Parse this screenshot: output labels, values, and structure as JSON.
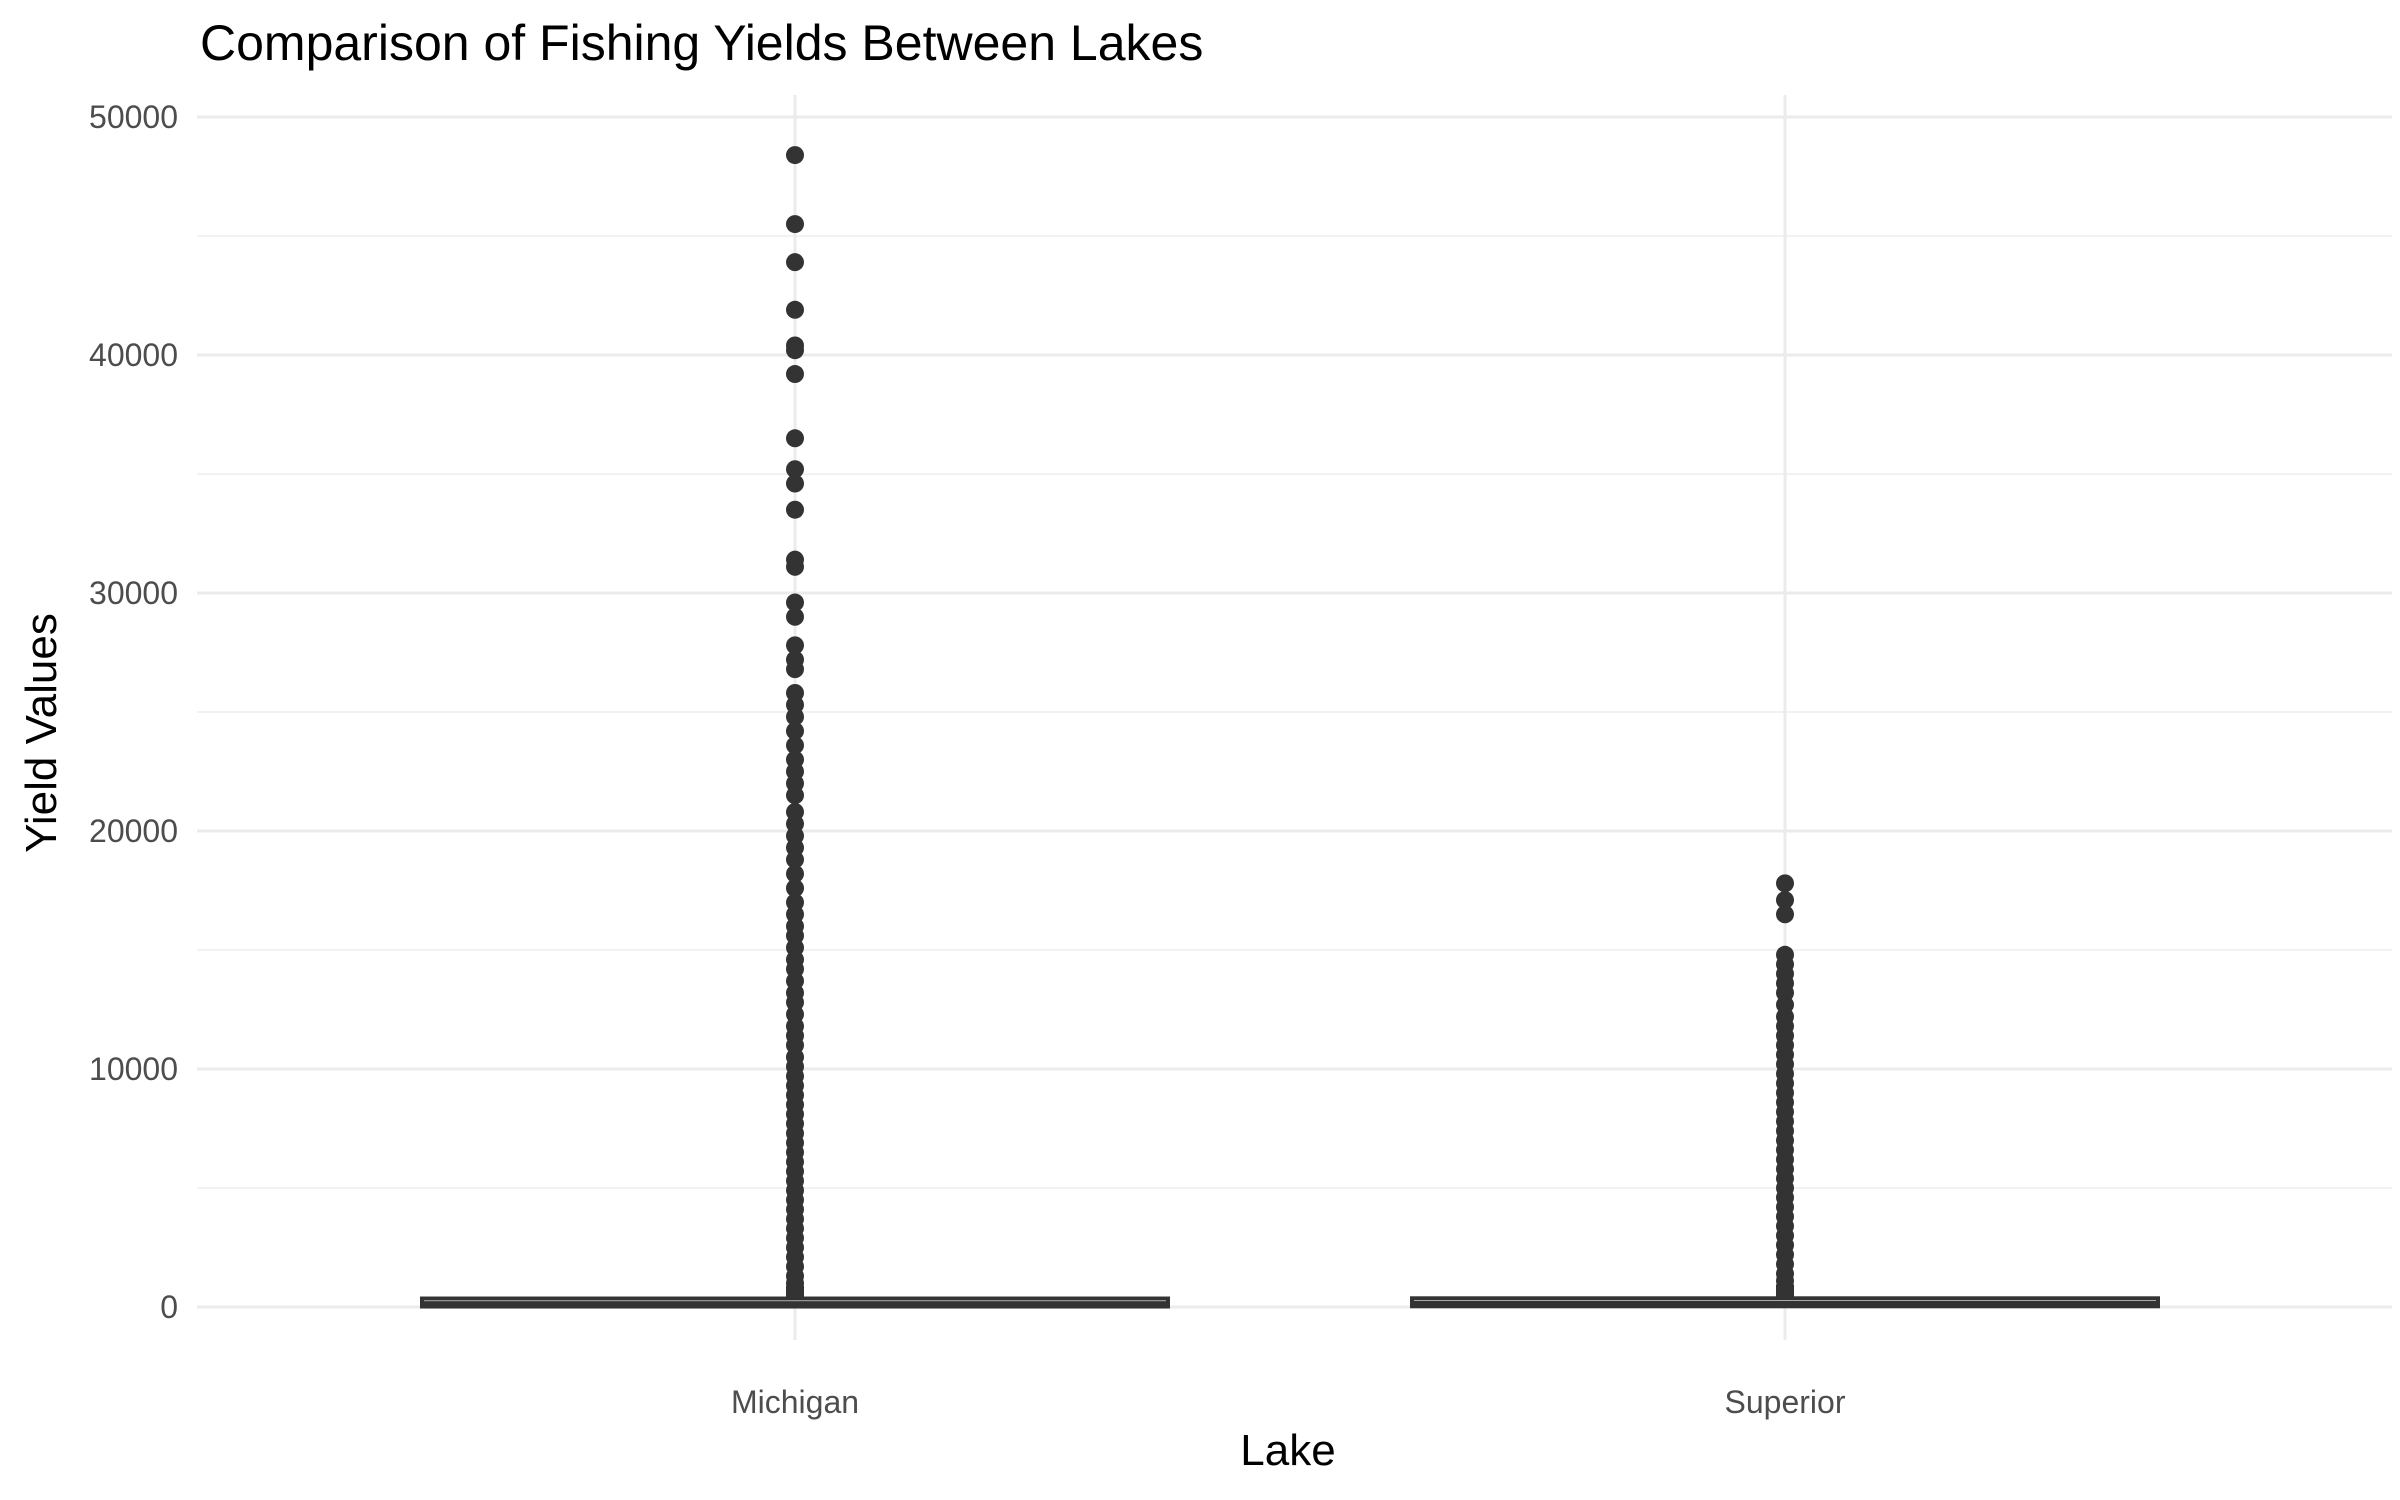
{
  "chart_data": {
    "type": "box",
    "title": "Comparison of Fishing Yields Between Lakes",
    "xlabel": "Lake",
    "ylabel": "Yield Values",
    "ylim": [
      -800,
      50800
    ],
    "y_ticks": [
      0,
      10000,
      20000,
      30000,
      40000,
      50000
    ],
    "categories": [
      "Michigan",
      "Superior"
    ],
    "grid": true,
    "colors": {
      "box": "#333333",
      "grid_major": "#ebebeb",
      "grid_minor": "#f2f2f2",
      "tick_text": "#4d4d4d"
    },
    "series": [
      {
        "category": "Michigan",
        "q1": 20,
        "median": 120,
        "q3": 300,
        "outliers": [
          48400,
          45500,
          43900,
          41900,
          40400,
          40200,
          39200,
          36500,
          35200,
          34600,
          33500,
          31400,
          31100,
          29600,
          29000,
          27800,
          27200,
          26800,
          25800,
          25300,
          24800,
          24200,
          23600,
          23000,
          22500,
          22000,
          21500,
          20800,
          20300,
          19800,
          19300,
          18800,
          18200,
          17600,
          17000,
          16500,
          16000,
          15600,
          15100,
          14600,
          14200,
          13700,
          13200,
          12800,
          12300,
          11800,
          11400,
          11000,
          10500,
          10100,
          9700,
          9300,
          8900,
          8500,
          8100,
          7700,
          7300,
          6900,
          6500,
          6100,
          5700,
          5300,
          4900,
          4500,
          4100,
          3700,
          3300,
          2900,
          2500,
          2100,
          1700,
          1300,
          1000,
          800
        ]
      },
      {
        "category": "Superior",
        "q1": 30,
        "median": 130,
        "q3": 330,
        "outliers": [
          17800,
          17100,
          16500,
          14800,
          14400,
          14000,
          13600,
          13200,
          12700,
          12200,
          11800,
          11400,
          11000,
          10600,
          10200,
          9800,
          9400,
          9000,
          8600,
          8200,
          7800,
          7400,
          7000,
          6600,
          6200,
          5800,
          5400,
          5000,
          4600,
          4200,
          3800,
          3400,
          3000,
          2600,
          2200,
          1800,
          1400,
          1100,
          850
        ]
      }
    ]
  }
}
